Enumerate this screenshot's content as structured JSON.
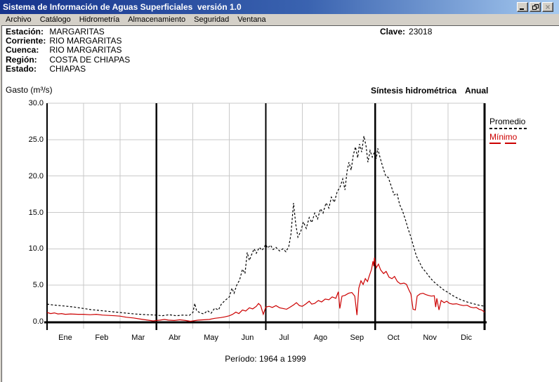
{
  "window": {
    "title": "Sistema de Información de Aguas Superficiales  versión 1.0"
  },
  "icons": {
    "minimize": "_",
    "restore": "❐",
    "close": "×"
  },
  "menu": {
    "items": [
      "Archivo",
      "Catálogo",
      "Hidrometría",
      "Almacenamiento",
      "Seguridad",
      "Ventana"
    ]
  },
  "station_info": {
    "rows": [
      {
        "label": "Estación:",
        "value": "MARGARITAS"
      },
      {
        "label": "Corriente:",
        "value": "RIO MARGARITAS"
      },
      {
        "label": "Cuenca:",
        "value": "RIO MARGARITAS"
      },
      {
        "label": "Región:",
        "value": "COSTA DE CHIAPAS"
      },
      {
        "label": "Estado:",
        "value": "CHIAPAS"
      }
    ],
    "clave_label": "Clave:",
    "clave_value": "23018"
  },
  "chart_data": {
    "type": "line",
    "title": "Síntesis hidrométrica",
    "subtitle": "Anual",
    "ylabel": "Gasto (m³/s)",
    "footer": "Período: 1964 a 1999",
    "categories": [
      "Ene",
      "Feb",
      "Mar",
      "Abr",
      "May",
      "Jun",
      "Jul",
      "Ago",
      "Sep",
      "Oct",
      "Nov",
      "Dic"
    ],
    "x_unit": "months (0 = 1 Ene, 12 = 31 Dic)",
    "y_unit": "m³/s",
    "ylim": [
      0,
      30
    ],
    "yticks": [
      0,
      5,
      10,
      15,
      20,
      25,
      30
    ],
    "ytick_labels": [
      "0.0",
      "5.0",
      "10.0",
      "15.0",
      "20.0",
      "25.0",
      "30.0"
    ],
    "grid": true,
    "quarter_lines_at_months": [
      0,
      3,
      6,
      9,
      12
    ],
    "legend_position": "right",
    "colors": {
      "promedio": "#000000",
      "minimo": "#cc0000",
      "grid": "#c9c9c9"
    },
    "series": [
      {
        "name": "Promedio",
        "color": "#000000",
        "style": "dashed",
        "points": [
          [
            0.0,
            2.4
          ],
          [
            0.15,
            2.3
          ],
          [
            0.35,
            2.2
          ],
          [
            0.55,
            2.1
          ],
          [
            0.75,
            2.0
          ],
          [
            1.0,
            1.8
          ],
          [
            1.2,
            1.65
          ],
          [
            1.4,
            1.55
          ],
          [
            1.6,
            1.45
          ],
          [
            1.8,
            1.35
          ],
          [
            2.0,
            1.25
          ],
          [
            2.2,
            1.15
          ],
          [
            2.4,
            1.05
          ],
          [
            2.55,
            1.0
          ],
          [
            2.75,
            0.95
          ],
          [
            3.0,
            0.9
          ],
          [
            3.15,
            0.8
          ],
          [
            3.35,
            0.95
          ],
          [
            3.55,
            0.8
          ],
          [
            3.72,
            0.9
          ],
          [
            3.9,
            0.85
          ],
          [
            4.0,
            1.25
          ],
          [
            4.05,
            2.5
          ],
          [
            4.1,
            1.5
          ],
          [
            4.2,
            1.2
          ],
          [
            4.3,
            1.05
          ],
          [
            4.4,
            1.5
          ],
          [
            4.5,
            1.15
          ],
          [
            4.6,
            1.85
          ],
          [
            4.7,
            1.6
          ],
          [
            4.78,
            2.4
          ],
          [
            4.88,
            2.9
          ],
          [
            5.0,
            3.4
          ],
          [
            5.07,
            4.6
          ],
          [
            5.13,
            3.9
          ],
          [
            5.2,
            5.0
          ],
          [
            5.28,
            5.7
          ],
          [
            5.36,
            7.2
          ],
          [
            5.43,
            6.6
          ],
          [
            5.49,
            9.5
          ],
          [
            5.55,
            8.4
          ],
          [
            5.61,
            9.2
          ],
          [
            5.68,
            10.0
          ],
          [
            5.74,
            9.4
          ],
          [
            5.82,
            10.2
          ],
          [
            5.9,
            9.8
          ],
          [
            6.0,
            10.6
          ],
          [
            6.05,
            10.1
          ],
          [
            6.13,
            10.5
          ],
          [
            6.2,
            9.9
          ],
          [
            6.28,
            10.2
          ],
          [
            6.38,
            9.7
          ],
          [
            6.47,
            10.0
          ],
          [
            6.55,
            9.6
          ],
          [
            6.63,
            10.3
          ],
          [
            6.69,
            12.0
          ],
          [
            6.76,
            16.3
          ],
          [
            6.82,
            13.4
          ],
          [
            6.88,
            11.6
          ],
          [
            6.96,
            12.4
          ],
          [
            7.03,
            13.7
          ],
          [
            7.11,
            12.8
          ],
          [
            7.19,
            14.3
          ],
          [
            7.26,
            13.6
          ],
          [
            7.34,
            14.9
          ],
          [
            7.42,
            14.1
          ],
          [
            7.5,
            15.5
          ],
          [
            7.57,
            14.9
          ],
          [
            7.65,
            16.3
          ],
          [
            7.73,
            15.6
          ],
          [
            7.8,
            17.1
          ],
          [
            7.88,
            16.4
          ],
          [
            7.96,
            17.9
          ],
          [
            8.03,
            18.4
          ],
          [
            8.11,
            19.6
          ],
          [
            8.17,
            18.1
          ],
          [
            8.23,
            20.7
          ],
          [
            8.28,
            21.9
          ],
          [
            8.34,
            20.8
          ],
          [
            8.4,
            22.9
          ],
          [
            8.46,
            24.0
          ],
          [
            8.52,
            22.5
          ],
          [
            8.57,
            24.4
          ],
          [
            8.63,
            23.3
          ],
          [
            8.69,
            25.5
          ],
          [
            8.75,
            24.1
          ],
          [
            8.8,
            21.9
          ],
          [
            8.86,
            23.5
          ],
          [
            8.92,
            22.6
          ],
          [
            8.98,
            23.3
          ],
          [
            9.03,
            22.4
          ],
          [
            9.07,
            23.8
          ],
          [
            9.13,
            22.6
          ],
          [
            9.21,
            21.2
          ],
          [
            9.29,
            20.0
          ],
          [
            9.36,
            19.8
          ],
          [
            9.44,
            18.6
          ],
          [
            9.52,
            17.4
          ],
          [
            9.6,
            17.6
          ],
          [
            9.67,
            16.1
          ],
          [
            9.75,
            15.2
          ],
          [
            9.83,
            14.0
          ],
          [
            9.9,
            12.8
          ],
          [
            9.98,
            11.6
          ],
          [
            10.06,
            10.2
          ],
          [
            10.13,
            9.0
          ],
          [
            10.21,
            8.2
          ],
          [
            10.29,
            7.4
          ],
          [
            10.39,
            6.8
          ],
          [
            10.48,
            6.2
          ],
          [
            10.58,
            5.6
          ],
          [
            10.67,
            5.2
          ],
          [
            10.77,
            4.8
          ],
          [
            10.89,
            4.3
          ],
          [
            11.0,
            4.0
          ],
          [
            11.12,
            3.6
          ],
          [
            11.23,
            3.3
          ],
          [
            11.35,
            3.0
          ],
          [
            11.46,
            2.8
          ],
          [
            11.58,
            2.6
          ],
          [
            11.7,
            2.45
          ],
          [
            11.81,
            2.3
          ],
          [
            11.91,
            2.2
          ],
          [
            12.0,
            2.1
          ]
        ]
      },
      {
        "name": "Mínimo",
        "color": "#cc0000",
        "style": "solid",
        "points": [
          [
            0.0,
            1.25
          ],
          [
            0.1,
            1.1
          ],
          [
            0.2,
            1.2
          ],
          [
            0.3,
            1.05
          ],
          [
            0.4,
            1.1
          ],
          [
            0.5,
            1.0
          ],
          [
            0.65,
            1.05
          ],
          [
            0.85,
            1.0
          ],
          [
            1.0,
            1.0
          ],
          [
            1.18,
            0.95
          ],
          [
            1.35,
            1.0
          ],
          [
            1.52,
            0.9
          ],
          [
            1.7,
            0.85
          ],
          [
            1.87,
            0.8
          ],
          [
            2.0,
            0.75
          ],
          [
            2.18,
            0.6
          ],
          [
            2.37,
            0.5
          ],
          [
            2.56,
            0.35
          ],
          [
            2.76,
            0.2
          ],
          [
            2.91,
            0.1
          ],
          [
            3.0,
            0.15
          ],
          [
            3.1,
            0.2
          ],
          [
            3.22,
            0.3
          ],
          [
            3.33,
            0.2
          ],
          [
            3.49,
            0.15
          ],
          [
            3.64,
            0.25
          ],
          [
            3.8,
            0.15
          ],
          [
            3.93,
            0.05
          ],
          [
            4.0,
            0.1
          ],
          [
            4.14,
            0.2
          ],
          [
            4.3,
            0.25
          ],
          [
            4.45,
            0.3
          ],
          [
            4.6,
            0.45
          ],
          [
            4.76,
            0.55
          ],
          [
            4.87,
            0.65
          ],
          [
            5.0,
            0.8
          ],
          [
            5.09,
            1.0
          ],
          [
            5.18,
            1.3
          ],
          [
            5.26,
            1.1
          ],
          [
            5.36,
            1.6
          ],
          [
            5.45,
            1.45
          ],
          [
            5.55,
            1.9
          ],
          [
            5.64,
            1.75
          ],
          [
            5.74,
            2.1
          ],
          [
            5.8,
            2.5
          ],
          [
            5.86,
            2.2
          ],
          [
            5.93,
            1.0
          ],
          [
            6.0,
            2.0
          ],
          [
            6.09,
            2.1
          ],
          [
            6.18,
            1.95
          ],
          [
            6.28,
            2.2
          ],
          [
            6.38,
            1.9
          ],
          [
            6.47,
            1.8
          ],
          [
            6.57,
            1.7
          ],
          [
            6.67,
            2.0
          ],
          [
            6.76,
            2.3
          ],
          [
            6.84,
            2.6
          ],
          [
            6.92,
            2.2
          ],
          [
            7.0,
            2.1
          ],
          [
            7.09,
            2.4
          ],
          [
            7.19,
            2.8
          ],
          [
            7.26,
            2.4
          ],
          [
            7.34,
            2.5
          ],
          [
            7.44,
            2.9
          ],
          [
            7.53,
            2.7
          ],
          [
            7.63,
            3.1
          ],
          [
            7.73,
            3.0
          ],
          [
            7.82,
            3.4
          ],
          [
            7.92,
            3.2
          ],
          [
            7.99,
            4.1
          ],
          [
            8.03,
            1.8
          ],
          [
            8.09,
            3.5
          ],
          [
            8.17,
            3.6
          ],
          [
            8.27,
            3.9
          ],
          [
            8.36,
            4.0
          ],
          [
            8.44,
            3.5
          ],
          [
            8.5,
            0.9
          ],
          [
            8.55,
            4.6
          ],
          [
            8.61,
            5.6
          ],
          [
            8.67,
            5.1
          ],
          [
            8.73,
            5.9
          ],
          [
            8.79,
            5.5
          ],
          [
            8.84,
            6.3
          ],
          [
            8.9,
            7.2
          ],
          [
            8.94,
            8.3
          ],
          [
            8.96,
            7.6
          ],
          [
            8.98,
            8.8
          ],
          [
            9.03,
            7.4
          ],
          [
            9.09,
            7.9
          ],
          [
            9.15,
            7.1
          ],
          [
            9.23,
            6.6
          ],
          [
            9.3,
            6.9
          ],
          [
            9.38,
            6.1
          ],
          [
            9.46,
            5.9
          ],
          [
            9.53,
            6.2
          ],
          [
            9.61,
            5.5
          ],
          [
            9.69,
            5.2
          ],
          [
            9.79,
            5.3
          ],
          [
            9.86,
            5.1
          ],
          [
            9.92,
            4.4
          ],
          [
            9.98,
            3.8
          ],
          [
            10.04,
            1.7
          ],
          [
            10.1,
            1.6
          ],
          [
            10.15,
            3.5
          ],
          [
            10.23,
            3.8
          ],
          [
            10.31,
            3.9
          ],
          [
            10.39,
            3.7
          ],
          [
            10.46,
            3.6
          ],
          [
            10.54,
            3.5
          ],
          [
            10.62,
            3.55
          ],
          [
            10.66,
            2.0
          ],
          [
            10.69,
            3.2
          ],
          [
            10.75,
            1.6
          ],
          [
            10.81,
            2.9
          ],
          [
            10.89,
            2.6
          ],
          [
            10.96,
            2.8
          ],
          [
            11.04,
            2.5
          ],
          [
            11.13,
            2.4
          ],
          [
            11.23,
            2.45
          ],
          [
            11.33,
            2.3
          ],
          [
            11.42,
            2.2
          ],
          [
            11.52,
            2.25
          ],
          [
            11.61,
            2.0
          ],
          [
            11.7,
            1.9
          ],
          [
            11.77,
            1.95
          ],
          [
            11.85,
            1.7
          ],
          [
            11.92,
            1.6
          ],
          [
            12.0,
            1.3
          ]
        ]
      }
    ]
  }
}
